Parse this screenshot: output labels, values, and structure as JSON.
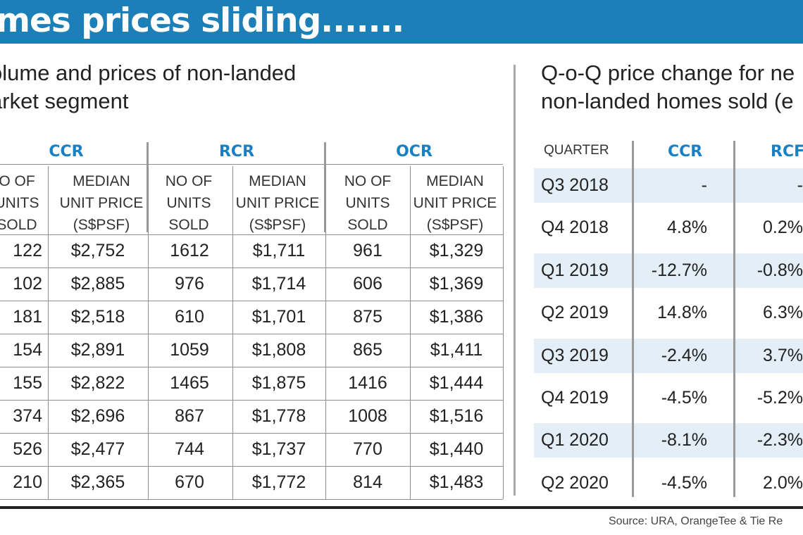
{
  "banner": {
    "title": "mes prices sliding......."
  },
  "left_panel": {
    "subtitle_line1": "olume and prices of non-landed",
    "subtitle_line2": "arket segment"
  },
  "right_panel": {
    "subtitle_line1": "Q-o-Q price change for ne",
    "subtitle_line2": "non-landed homes sold (e"
  },
  "source": "Source: URA, OrangeTee & Tie Re",
  "colors": {
    "banner": "#1c7fb8",
    "segment_label": "#1a80c4",
    "row_band": "#e3eef7"
  },
  "chart_data": [
    {
      "type": "table",
      "segments": [
        "CCR",
        "RCR",
        "OCR"
      ],
      "column_headers": [
        {
          "l1": "O OF",
          "l2": "UNITS",
          "l3": "SOLD"
        },
        {
          "l1": "MEDIAN",
          "l2": "UNIT PRICE",
          "l3": "(S$PSF)"
        },
        {
          "l1": "NO OF",
          "l2": "UNITS",
          "l3": "SOLD"
        },
        {
          "l1": "MEDIAN",
          "l2": "UNIT PRICE",
          "l3": "(S$PSF)"
        },
        {
          "l1": "NO OF",
          "l2": "UNITS",
          "l3": "SOLD"
        },
        {
          "l1": "MEDIAN",
          "l2": "UNIT PRICE",
          "l3": "(S$PSF)"
        }
      ],
      "rows": [
        [
          "122",
          "$2,752",
          "1612",
          "$1,711",
          "961",
          "$1,329"
        ],
        [
          "102",
          "$2,885",
          "976",
          "$1,714",
          "606",
          "$1,369"
        ],
        [
          "181",
          "$2,518",
          "610",
          "$1,701",
          "875",
          "$1,386"
        ],
        [
          "154",
          "$2,891",
          "1059",
          "$1,808",
          "865",
          "$1,411"
        ],
        [
          "155",
          "$2,822",
          "1465",
          "$1,875",
          "1416",
          "$1,444"
        ],
        [
          "374",
          "$2,696",
          "867",
          "$1,778",
          "1008",
          "$1,516"
        ],
        [
          "526",
          "$2,477",
          "744",
          "$1,737",
          "770",
          "$1,440"
        ],
        [
          "210",
          "$2,365",
          "670",
          "$1,772",
          "814",
          "$1,483"
        ]
      ]
    },
    {
      "type": "table",
      "quarter_header": "QUARTER",
      "segments": [
        "CCR",
        "RCF"
      ],
      "rows": [
        [
          "Q3 2018",
          "-",
          "-"
        ],
        [
          "Q4 2018",
          "4.8%",
          "0.2%"
        ],
        [
          "Q1 2019",
          "-12.7%",
          "-0.8%"
        ],
        [
          "Q2 2019",
          "14.8%",
          "6.3%"
        ],
        [
          "Q3 2019",
          "-2.4%",
          "3.7%"
        ],
        [
          "Q4 2019",
          "-4.5%",
          "-5.2%"
        ],
        [
          "Q1 2020",
          "-8.1%",
          "-2.3%"
        ],
        [
          "Q2 2020",
          "-4.5%",
          "2.0%"
        ]
      ]
    }
  ]
}
